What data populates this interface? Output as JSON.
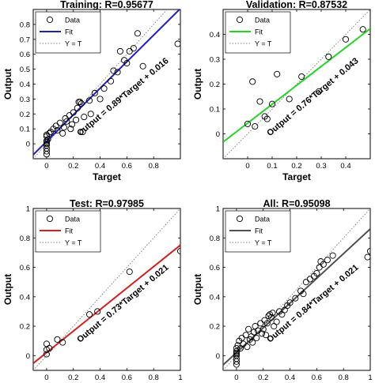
{
  "figure": {
    "panels": [
      {
        "title": "Training: R=0.95677",
        "xlabel": "Target",
        "ylabel": "Output",
        "annotation": "Output = 0.89*Target + 0.016"
      },
      {
        "title": "Validation: R=0.87532",
        "xlabel": "Target",
        "ylabel": "Output",
        "annotation": "Output = 0.76*Target + 0.043"
      },
      {
        "title": "Test: R=0.97985",
        "xlabel": "Target",
        "ylabel": "Output",
        "annotation": "Output = 0.73*Target + 0.021"
      },
      {
        "title": "All: R=0.95098",
        "xlabel": "Target",
        "ylabel": "Output",
        "annotation": "Output = 0.84*Target + 0.021"
      }
    ],
    "legend": {
      "data": "Data",
      "fit": "Fit",
      "identity": "Y = T"
    }
  },
  "chart_data": [
    {
      "type": "scatter",
      "title": "Training: R=0.95677",
      "xlabel": "Target",
      "ylabel": "Output",
      "xlim": [
        -0.1,
        1.0
      ],
      "ylim": [
        -0.1,
        0.9
      ],
      "xticks": [
        0,
        0.2,
        0.4,
        0.6,
        0.8
      ],
      "yticks": [
        0,
        0.1,
        0.2,
        0.3,
        0.4,
        0.5,
        0.6,
        0.7,
        0.8
      ],
      "fit": {
        "slope": 0.89,
        "intercept": 0.016,
        "color": "#1f1fbf"
      },
      "legend": [
        "Data",
        "Fit",
        "Y = T"
      ],
      "annotation": "Output = 0.89*Target + 0.016",
      "points": [
        [
          0,
          0
        ],
        [
          0,
          0.01
        ],
        [
          0,
          0.02
        ],
        [
          0,
          -0.01
        ],
        [
          0.01,
          0.03
        ],
        [
          0,
          0.05
        ],
        [
          0,
          0.06
        ],
        [
          0.02,
          0.07
        ],
        [
          0,
          -0.03
        ],
        [
          0,
          -0.05
        ],
        [
          0,
          -0.07
        ],
        [
          0.03,
          0.08
        ],
        [
          0.05,
          0.1
        ],
        [
          0.07,
          0.12
        ],
        [
          0.08,
          0.09
        ],
        [
          0.1,
          0.14
        ],
        [
          0.12,
          0.07
        ],
        [
          0.13,
          0.11
        ],
        [
          0.14,
          0.17
        ],
        [
          0.15,
          0.15
        ],
        [
          0.17,
          0.19
        ],
        [
          0.18,
          0.1
        ],
        [
          0.19,
          0.13
        ],
        [
          0.2,
          0.21
        ],
        [
          0.22,
          0.16
        ],
        [
          0.23,
          0.24
        ],
        [
          0.24,
          0.28
        ],
        [
          0.25,
          0.28
        ],
        [
          0.26,
          0.27
        ],
        [
          0.27,
          0.08
        ],
        [
          0.28,
          0.18
        ],
        [
          0.32,
          0.29
        ],
        [
          0.33,
          0.2
        ],
        [
          0.36,
          0.34
        ],
        [
          0.4,
          0.3
        ],
        [
          0.43,
          0.37
        ],
        [
          0.48,
          0.42
        ],
        [
          0.5,
          0.49
        ],
        [
          0.53,
          0.48
        ],
        [
          0.55,
          0.62
        ],
        [
          0.58,
          0.56
        ],
        [
          0.6,
          0.54
        ],
        [
          0.62,
          0.62
        ],
        [
          0.65,
          0.64
        ],
        [
          0.68,
          0.74
        ],
        [
          0.72,
          0.52
        ],
        [
          0.98,
          0.67
        ]
      ]
    },
    {
      "type": "scatter",
      "title": "Validation: R=0.87532",
      "xlabel": "Target",
      "ylabel": "Output",
      "xlim": [
        -0.1,
        0.5
      ],
      "ylim": [
        -0.1,
        0.5
      ],
      "xticks": [
        0,
        0.1,
        0.2,
        0.3,
        0.4
      ],
      "yticks": [
        0,
        0.1,
        0.2,
        0.3,
        0.4
      ],
      "fit": {
        "slope": 0.76,
        "intercept": 0.043,
        "color": "#22d622"
      },
      "legend": [
        "Data",
        "Fit",
        "Y = T"
      ],
      "annotation": "Output = 0.76*Target + 0.043",
      "points": [
        [
          0,
          0.04
        ],
        [
          0.02,
          0.21
        ],
        [
          0.03,
          0.03
        ],
        [
          0.05,
          0.13
        ],
        [
          0.07,
          0.07
        ],
        [
          0.08,
          0.06
        ],
        [
          0.1,
          0.12
        ],
        [
          0.12,
          0.24
        ],
        [
          0.17,
          0.14
        ],
        [
          0.22,
          0.23
        ],
        [
          0.29,
          0.17
        ],
        [
          0.33,
          0.31
        ],
        [
          0.4,
          0.38
        ],
        [
          0.47,
          0.42
        ]
      ]
    },
    {
      "type": "scatter",
      "title": "Test: R=0.97985",
      "xlabel": "Target",
      "ylabel": "Output",
      "xlim": [
        -0.1,
        1.0
      ],
      "ylim": [
        -0.1,
        1.0
      ],
      "xticks": [
        0,
        0.2,
        0.4,
        0.6,
        0.8,
        1
      ],
      "yticks": [
        0,
        0.2,
        0.4,
        0.6,
        0.8,
        1
      ],
      "fit": {
        "slope": 0.73,
        "intercept": 0.021,
        "color": "#d62020"
      },
      "legend": [
        "Data",
        "Fit",
        "Y = T"
      ],
      "annotation": "Output = 0.73*Target + 0.021",
      "points": [
        [
          0,
          0.01
        ],
        [
          0,
          0.04
        ],
        [
          0,
          0.08
        ],
        [
          0.02,
          0.05
        ],
        [
          0.08,
          0.11
        ],
        [
          0.12,
          0.09
        ],
        [
          0.32,
          0.28
        ],
        [
          0.38,
          0.3
        ],
        [
          0.62,
          0.57
        ],
        [
          1.0,
          0.71
        ]
      ]
    },
    {
      "type": "scatter",
      "title": "All: R=0.95098",
      "xlabel": "Target",
      "ylabel": "Output",
      "xlim": [
        -0.1,
        1.0
      ],
      "ylim": [
        -0.1,
        1.0
      ],
      "xticks": [
        0,
        0.2,
        0.4,
        0.6,
        0.8,
        1
      ],
      "yticks": [
        0,
        0.2,
        0.4,
        0.6,
        0.8,
        1
      ],
      "fit": {
        "slope": 0.84,
        "intercept": 0.021,
        "color": "#505050"
      },
      "legend": [
        "Data",
        "Fit",
        "Y = T"
      ],
      "annotation": "Output = 0.84*Target + 0.021",
      "points": [
        [
          0,
          0
        ],
        [
          0,
          0.01
        ],
        [
          0,
          0.02
        ],
        [
          0,
          0.03
        ],
        [
          0,
          0.05
        ],
        [
          0,
          -0.02
        ],
        [
          0,
          -0.04
        ],
        [
          0,
          -0.06
        ],
        [
          0.01,
          0.07
        ],
        [
          0.02,
          0.1
        ],
        [
          0.03,
          0.05
        ],
        [
          0.04,
          0.12
        ],
        [
          0.05,
          0.08
        ],
        [
          0.07,
          0.14
        ],
        [
          0.08,
          0.06
        ],
        [
          0.09,
          0.18
        ],
        [
          0.1,
          0.11
        ],
        [
          0.11,
          0.13
        ],
        [
          0.12,
          0.09
        ],
        [
          0.13,
          0.16
        ],
        [
          0.14,
          0.2
        ],
        [
          0.15,
          0.12
        ],
        [
          0.16,
          0.17
        ],
        [
          0.18,
          0.22
        ],
        [
          0.19,
          0.15
        ],
        [
          0.2,
          0.18
        ],
        [
          0.21,
          0.24
        ],
        [
          0.22,
          0.14
        ],
        [
          0.23,
          0.22
        ],
        [
          0.24,
          0.27
        ],
        [
          0.25,
          0.28
        ],
        [
          0.26,
          0.26
        ],
        [
          0.27,
          0.29
        ],
        [
          0.28,
          0.2
        ],
        [
          0.3,
          0.23
        ],
        [
          0.32,
          0.3
        ],
        [
          0.34,
          0.28
        ],
        [
          0.36,
          0.31
        ],
        [
          0.38,
          0.34
        ],
        [
          0.4,
          0.36
        ],
        [
          0.44,
          0.39
        ],
        [
          0.48,
          0.44
        ],
        [
          0.5,
          0.42
        ],
        [
          0.52,
          0.5
        ],
        [
          0.55,
          0.52
        ],
        [
          0.58,
          0.54
        ],
        [
          0.6,
          0.56
        ],
        [
          0.62,
          0.6
        ],
        [
          0.63,
          0.64
        ],
        [
          0.65,
          0.62
        ],
        [
          0.68,
          0.65
        ],
        [
          0.72,
          0.68
        ],
        [
          0.98,
          0.67
        ],
        [
          1.0,
          0.71
        ]
      ]
    }
  ]
}
